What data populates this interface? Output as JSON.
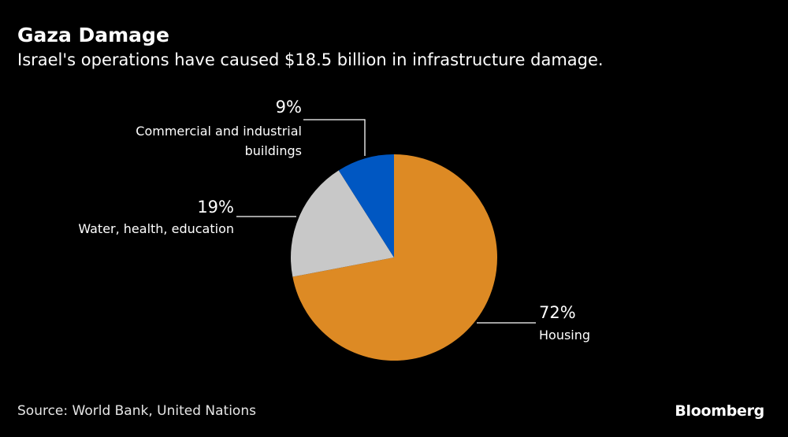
{
  "header": {
    "title": "Gaza Damage",
    "subtitle": "Israel's operations have caused $18.5 billion in infrastructure damage."
  },
  "footer": {
    "source": "Source: World Bank, United Nations",
    "logo": "Bloomberg"
  },
  "chart_data": {
    "type": "pie",
    "title": "Gaza Damage",
    "subtitle": "Israel's operations have caused $18.5 billion in infrastructure damage.",
    "start": "top",
    "direction": "clockwise",
    "slices": [
      {
        "name": "Housing",
        "value": 72,
        "label": "72%",
        "color": "#dd8a24",
        "lines": [
          "Housing"
        ]
      },
      {
        "name": "Water, health, education",
        "value": 19,
        "label": "19%",
        "color": "#c8c8c8",
        "lines": [
          "Water, health, education"
        ]
      },
      {
        "name": "Commercial and industrial buildings",
        "value": 9,
        "label": "9%",
        "color": "#0057c2",
        "lines": [
          "Commercial and industrial",
          "buildings"
        ]
      }
    ]
  }
}
